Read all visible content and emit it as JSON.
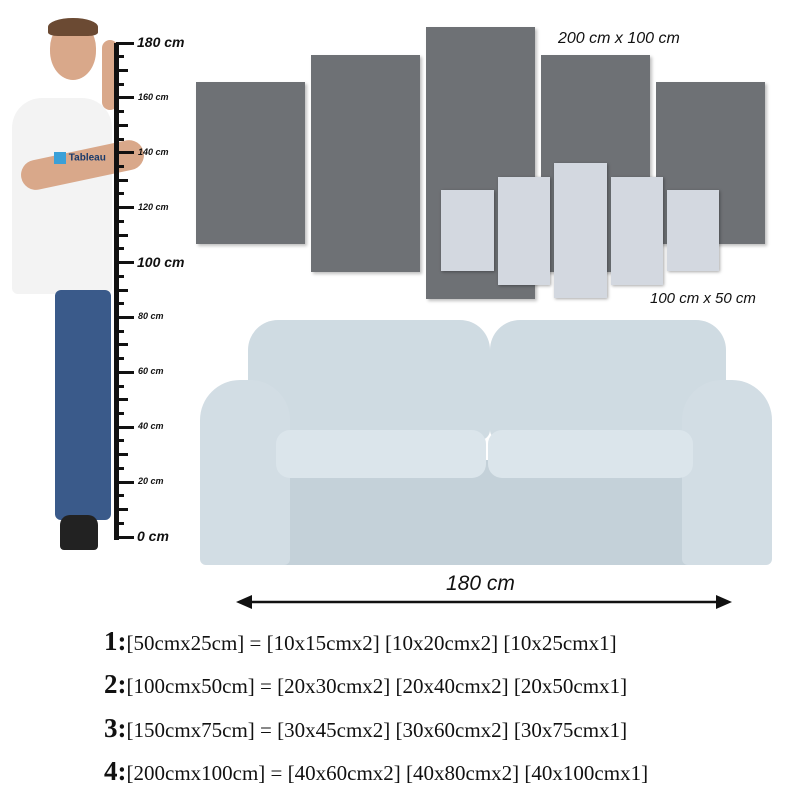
{
  "ruler": {
    "labels": [
      "180 cm",
      "160 cm",
      "140 cm",
      "120 cm",
      "100 cm",
      "80 cm",
      "60 cm",
      "40 cm",
      "20 cm",
      "0 cm"
    ]
  },
  "shirt_logo": "Tableau",
  "canvas_labels": {
    "large": "200 cm x 100 cm",
    "small": "100 cm x 50 cm"
  },
  "sofa_width_label": "180 cm",
  "specs": [
    {
      "num": "1:",
      "text": "[50cmx25cm] = [10x15cmx2] [10x20cmx2] [10x25cmx1]"
    },
    {
      "num": "2:",
      "text": "[100cmx50cm] = [20x30cmx2] [20x40cmx2] [20x50cmx1]"
    },
    {
      "num": "3:",
      "text": "[150cmx75cm] = [30x45cmx2] [30x60cmx2] [30x75cmx1]"
    },
    {
      "num": "4:",
      "text": "[200cmx100cm] = [40x60cmx2] [40x80cmx2] [40x100cmx1]"
    }
  ],
  "colors": {
    "dark_canvas": "#6e7175",
    "light_canvas": "#d3d8e0",
    "sofa": "#c9d6dd"
  }
}
